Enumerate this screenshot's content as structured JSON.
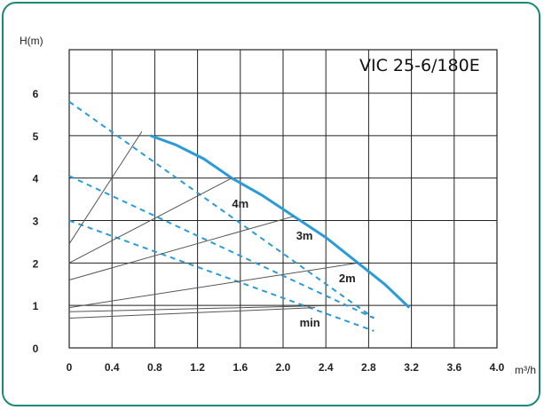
{
  "chart_data": {
    "type": "line",
    "title": "VIC 25-6/180E",
    "ylabel": "H(m)",
    "xlabel": "m³/h",
    "xlim": [
      0,
      4.0
    ],
    "ylim": [
      0,
      6
    ],
    "x_ticks": [
      "0",
      "0.4",
      "0.8",
      "1.2",
      "1.6",
      "2.0",
      "2.4",
      "2.8",
      "3.2",
      "3.6",
      "4.0"
    ],
    "y_ticks": [
      "0",
      "1",
      "2",
      "3",
      "4",
      "5",
      "6"
    ],
    "grid": true,
    "colors": {
      "max_curve": "#2a9bd8",
      "dashed": "#2a9bd8",
      "system": "#555555",
      "grid": "#222222"
    },
    "series": [
      {
        "name": "max",
        "style": "solid",
        "points": [
          [
            0.76,
            5.0
          ],
          [
            1.0,
            4.78
          ],
          [
            1.26,
            4.45
          ],
          [
            1.52,
            4.0
          ],
          [
            1.8,
            3.6
          ],
          [
            2.1,
            3.1
          ],
          [
            2.4,
            2.6
          ],
          [
            2.7,
            2.0
          ],
          [
            2.95,
            1.5
          ],
          [
            3.18,
            0.95
          ]
        ]
      },
      {
        "name": "dashed-1",
        "style": "dashed",
        "points": [
          [
            0.0,
            5.8
          ],
          [
            2.85,
            0.7
          ]
        ]
      },
      {
        "name": "dashed-2",
        "style": "dashed",
        "points": [
          [
            0.0,
            4.05
          ],
          [
            2.85,
            0.7
          ]
        ]
      },
      {
        "name": "dashed-3",
        "style": "dashed",
        "points": [
          [
            0.0,
            3.0
          ],
          [
            2.85,
            0.4
          ]
        ]
      },
      {
        "name": "system-1",
        "style": "thin",
        "points": [
          [
            0.0,
            2.45
          ],
          [
            0.68,
            5.1
          ]
        ]
      },
      {
        "name": "system-2",
        "style": "thin",
        "points": [
          [
            0.0,
            2.0
          ],
          [
            1.52,
            4.0
          ]
        ]
      },
      {
        "name": "system-3",
        "style": "thin",
        "points": [
          [
            0.0,
            1.6
          ],
          [
            2.1,
            3.1
          ]
        ]
      },
      {
        "name": "system-4",
        "style": "thin",
        "points": [
          [
            0.0,
            0.95
          ],
          [
            2.7,
            2.0
          ]
        ]
      },
      {
        "name": "system-5",
        "style": "thin",
        "points": [
          [
            0.0,
            0.85
          ],
          [
            2.45,
            1.0
          ]
        ]
      },
      {
        "name": "system-6",
        "style": "thin",
        "points": [
          [
            0.0,
            0.7
          ],
          [
            2.3,
            0.95
          ]
        ]
      }
    ],
    "annotations": [
      {
        "text": "4m",
        "x": 1.6,
        "y": 3.3
      },
      {
        "text": "3m",
        "x": 2.2,
        "y": 2.55
      },
      {
        "text": "2m",
        "x": 2.6,
        "y": 1.55
      },
      {
        "text": "min",
        "x": 2.25,
        "y": 0.5
      }
    ]
  }
}
